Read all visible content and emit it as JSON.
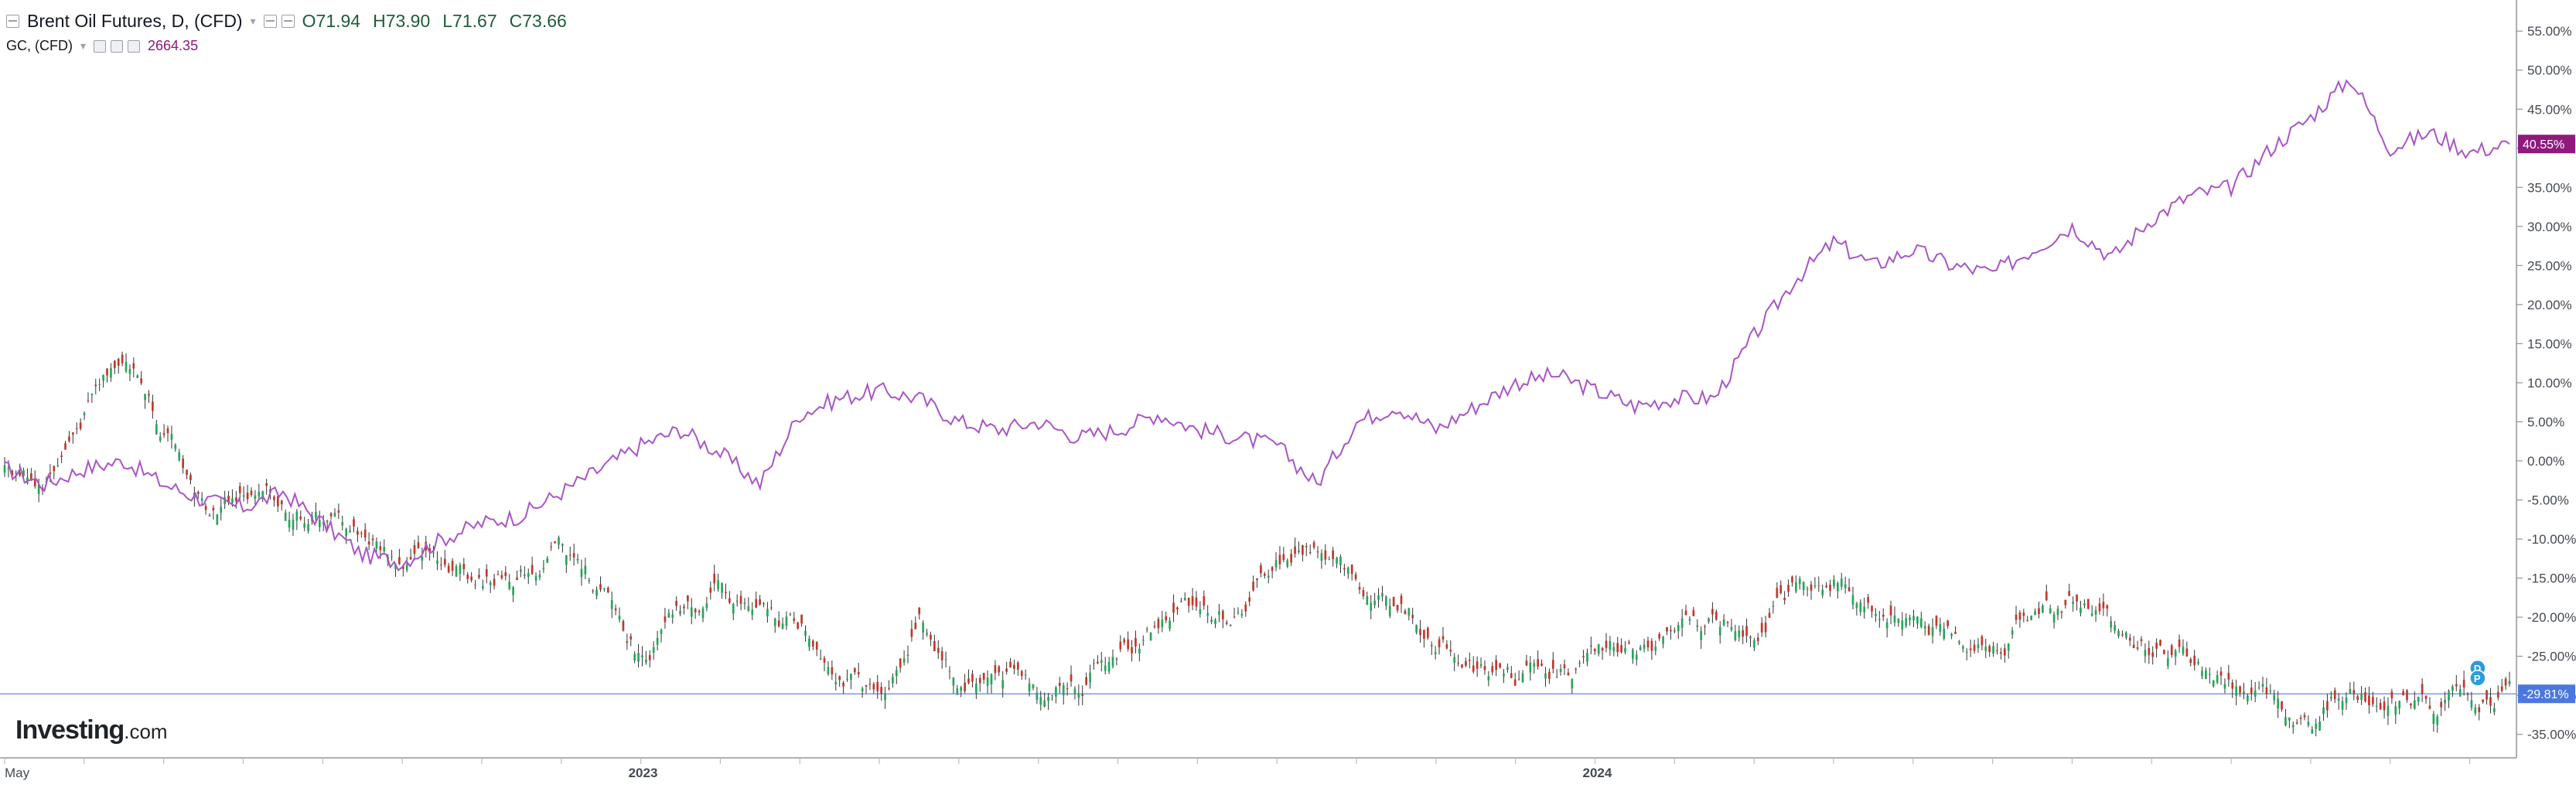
{
  "header": {
    "main_symbol": "Brent Oil Futures, D, (CFD)",
    "ohlc": {
      "open": "O71.94",
      "high": "H73.90",
      "low": "L71.67",
      "close": "C73.66"
    },
    "compare_symbol": "GC, (CFD)",
    "compare_value": "2664.35"
  },
  "logo": {
    "brand": "Investing",
    "suffix": ".com"
  },
  "colors": {
    "compare_line": "#a855c7",
    "compare_badge": "#8e1a7d",
    "up_candle": "#26a65b",
    "down_candle": "#c0392b",
    "last_price_line": "#5b87e6",
    "badge_blue": "#4a78e0",
    "axis": "#8f959e",
    "grid_tick": "#b7bcc4"
  },
  "chart_data": {
    "type": "line",
    "title": "Brent Oil Futures, D, (CFD)",
    "xlabel": "",
    "ylabel": "",
    "y_axis": "percent change",
    "ylim": [
      -38,
      57
    ],
    "y_ticks": [
      55,
      50,
      45,
      40,
      35,
      30,
      25,
      20,
      15,
      10,
      5,
      0,
      -5,
      -10,
      -15,
      -20,
      -25,
      -30,
      -35
    ],
    "y_tick_labels": [
      "55.00%",
      "50.00%",
      "45.00%",
      "40.00%",
      "35.00%",
      "30.00%",
      "25.00%",
      "20.00%",
      "15.00%",
      "10.00%",
      "5.00%",
      "0.00%",
      "-5.00%",
      "-10.00%",
      "-15.00%",
      "-20.00%",
      "-25.00%",
      "-30.00%",
      "-35.00%"
    ],
    "x_tick_labels": [
      {
        "label": "May",
        "month": 0
      },
      {
        "label": "2023",
        "month": 8
      },
      {
        "label": "2024",
        "month": 20
      }
    ],
    "x_range_months": [
      0,
      31.5
    ],
    "last_value_badges": [
      {
        "series": "GC, (CFD)",
        "text": "40.55%",
        "value": 40.55
      },
      {
        "series": "Brent Oil Futures, D, (CFD)",
        "text": "-29.81%",
        "value": -29.81
      }
    ],
    "markers": [
      {
        "text": "D",
        "month": 31.1,
        "value": -26.5
      },
      {
        "text": "P",
        "month": 31.1,
        "value": -27.8
      }
    ],
    "series": [
      {
        "name": "GC, (CFD)",
        "type": "line",
        "x_months": [
          0,
          0.5,
          1,
          1.5,
          2,
          2.5,
          3,
          3.5,
          4,
          4.5,
          5,
          5.5,
          6,
          6.5,
          7,
          7.5,
          8,
          8.5,
          9,
          9.5,
          10,
          10.5,
          11,
          11.5,
          12,
          12.5,
          13,
          13.5,
          14,
          14.5,
          15,
          15.5,
          16,
          16.5,
          17,
          17.5,
          18,
          18.5,
          19,
          19.5,
          20,
          20.5,
          21,
          21.5,
          22,
          22.5,
          23,
          23.5,
          24,
          24.5,
          25,
          25.5,
          26,
          26.5,
          27,
          27.5,
          28,
          28.5,
          29,
          29.5,
          30,
          30.5,
          31,
          31.5
        ],
        "values": [
          -1,
          -3,
          -1,
          0,
          -3,
          -5,
          -6,
          -4,
          -8,
          -12,
          -13,
          -10,
          -8,
          -7,
          -4,
          -1,
          2,
          4,
          1,
          -3,
          6,
          8,
          9,
          8,
          5,
          4,
          5,
          3,
          4,
          6,
          4,
          3,
          2,
          -3,
          5,
          7,
          4,
          7,
          10,
          11,
          9,
          7,
          8,
          8,
          16,
          23,
          28,
          25,
          27,
          25,
          24,
          27,
          30,
          26,
          31,
          34,
          35,
          40,
          44,
          49,
          40,
          42,
          39.5,
          40.55
        ]
      },
      {
        "name": "Brent Oil Futures, D, (CFD)",
        "type": "candlestick",
        "x_months": [
          0,
          0.5,
          1,
          1.5,
          2,
          2.5,
          3,
          3.5,
          4,
          4.5,
          5,
          5.5,
          6,
          6.5,
          7,
          7.5,
          8,
          8.5,
          9,
          9.5,
          10,
          10.5,
          11,
          11.5,
          12,
          12.5,
          13,
          13.5,
          14,
          14.5,
          15,
          15.5,
          16,
          16.5,
          17,
          17.5,
          18,
          18.5,
          19,
          19.5,
          20,
          20.5,
          21,
          21.5,
          22,
          22.5,
          23,
          23.5,
          24,
          24.5,
          25,
          25.5,
          26,
          26.5,
          27,
          27.5,
          28,
          28.5,
          29,
          29.5,
          30,
          30.5,
          31,
          31.5
        ],
        "values": [
          0,
          -2,
          6,
          15,
          5,
          -6,
          -4,
          -6,
          -7,
          -9,
          -13,
          -12,
          -15,
          -14,
          -11,
          -17,
          -25,
          -20,
          -17,
          -20,
          -21,
          -26,
          -31,
          -20,
          -28,
          -27,
          -29,
          -28,
          -25,
          -21,
          -18,
          -20,
          -13,
          -11,
          -16,
          -18,
          -22,
          -26,
          -28,
          -27,
          -26,
          -23,
          -22,
          -21,
          -21,
          -17,
          -15,
          -19,
          -20,
          -22,
          -24,
          -20,
          -18,
          -21,
          -24,
          -26,
          -29,
          -31,
          -34,
          -28,
          -30,
          -31,
          -30,
          -29.81
        ]
      }
    ]
  }
}
